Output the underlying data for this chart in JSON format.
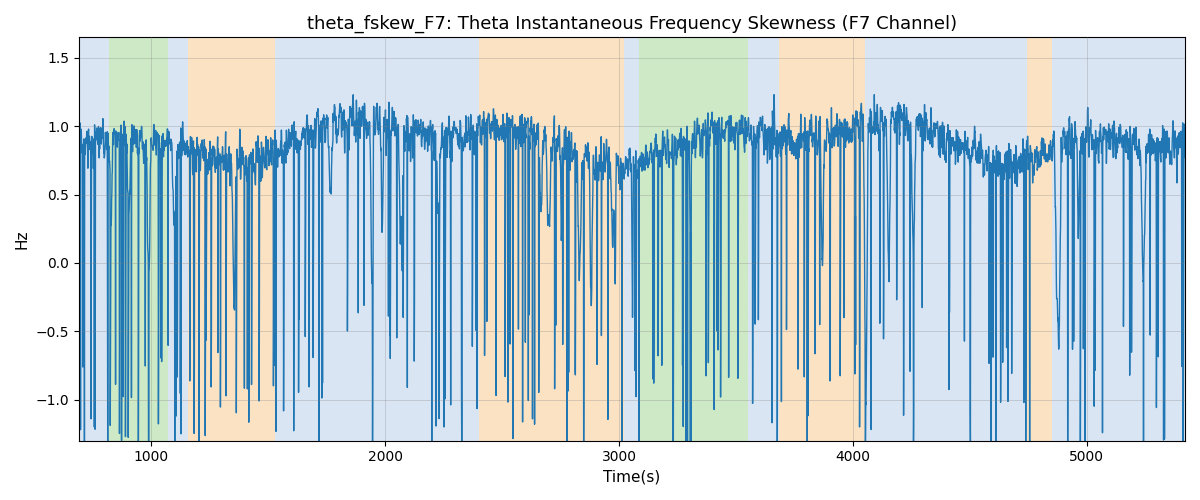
{
  "title": "theta_fskew_F7: Theta Instantaneous Frequency Skewness (F7 Channel)",
  "xlabel": "Time(s)",
  "ylabel": "Hz",
  "line_color": "#2077b4",
  "line_width": 1.0,
  "ylim": [
    -1.3,
    1.65
  ],
  "xlim": [
    690,
    5420
  ],
  "bg_bands": [
    {
      "xstart": 690,
      "xend": 820,
      "color": "#aec6e8",
      "alpha": 0.45
    },
    {
      "xstart": 820,
      "xend": 1070,
      "color": "#90d080",
      "alpha": 0.45
    },
    {
      "xstart": 1070,
      "xend": 1155,
      "color": "#aec6e8",
      "alpha": 0.45
    },
    {
      "xstart": 1155,
      "xend": 1530,
      "color": "#f5c07a",
      "alpha": 0.45
    },
    {
      "xstart": 1530,
      "xend": 1665,
      "color": "#aec6e8",
      "alpha": 0.45
    },
    {
      "xstart": 1665,
      "xend": 2400,
      "color": "#aec6e8",
      "alpha": 0.45
    },
    {
      "xstart": 2400,
      "xend": 3020,
      "color": "#f5c07a",
      "alpha": 0.45
    },
    {
      "xstart": 3020,
      "xend": 3085,
      "color": "#aec6e8",
      "alpha": 0.45
    },
    {
      "xstart": 3085,
      "xend": 3550,
      "color": "#90d080",
      "alpha": 0.45
    },
    {
      "xstart": 3550,
      "xend": 3685,
      "color": "#aec6e8",
      "alpha": 0.45
    },
    {
      "xstart": 3685,
      "xend": 4050,
      "color": "#f5c07a",
      "alpha": 0.45
    },
    {
      "xstart": 4050,
      "xend": 4745,
      "color": "#aec6e8",
      "alpha": 0.45
    },
    {
      "xstart": 4745,
      "xend": 4850,
      "color": "#f5c07a",
      "alpha": 0.45
    },
    {
      "xstart": 4850,
      "xend": 5420,
      "color": "#aec6e8",
      "alpha": 0.45
    }
  ],
  "seed": 17,
  "n_points": 4800,
  "t_start": 690,
  "t_end": 5420,
  "title_fontsize": 13,
  "label_fontsize": 11,
  "tick_fontsize": 10
}
